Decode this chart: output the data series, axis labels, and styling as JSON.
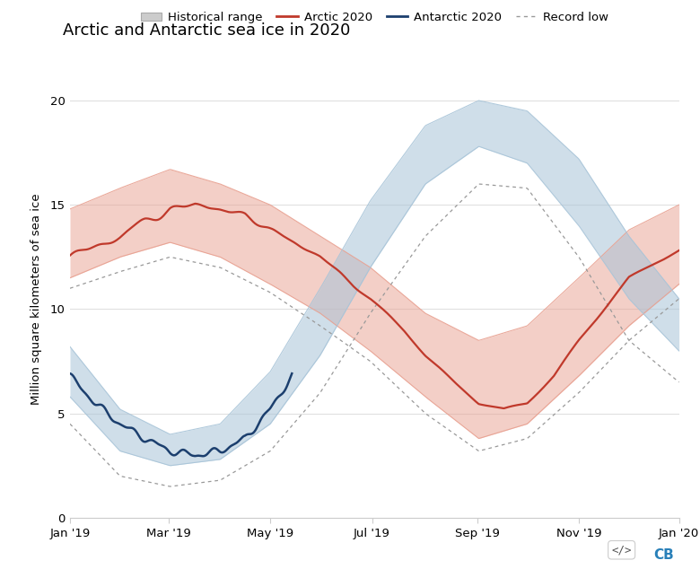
{
  "title": "Arctic and Antarctic sea ice in 2020",
  "ylabel": "Million square kilometers of sea ice",
  "ylim": [
    0,
    21
  ],
  "yticks": [
    0,
    5,
    10,
    15,
    20
  ],
  "background_color": "#ffffff",
  "arctic_color": "#c0392b",
  "antarctic_color": "#1c3f6e",
  "arctic_fill_color": "#e8a090",
  "antarctic_fill_color": "#a8c4d8",
  "record_low_color": "#999999",
  "tick_positions": [
    0,
    59,
    120,
    181,
    244,
    305,
    365
  ],
  "tick_labels": [
    "Jan '19",
    "Mar '19",
    "May '19",
    "Jul '19",
    "Sep '19",
    "Nov '19",
    "Jan '20"
  ],
  "arctic_2020_x": [
    0,
    15,
    30,
    45,
    60,
    75,
    90,
    105,
    120,
    135,
    150,
    165,
    180,
    200,
    213,
    230,
    245,
    260,
    274,
    290,
    305,
    320,
    335,
    350,
    365
  ],
  "arctic_2020_y": [
    12.5,
    13.0,
    13.5,
    14.2,
    14.8,
    15.0,
    14.8,
    14.5,
    13.8,
    13.2,
    12.5,
    11.5,
    10.5,
    9.0,
    7.8,
    6.5,
    5.5,
    5.2,
    5.5,
    6.8,
    8.5,
    10.0,
    11.5,
    12.2,
    12.8
  ],
  "arctic_upper_x": [
    0,
    30,
    60,
    90,
    120,
    150,
    180,
    213,
    245,
    274,
    305,
    335,
    365
  ],
  "arctic_upper_y": [
    14.8,
    15.8,
    16.7,
    16.0,
    15.0,
    13.5,
    12.0,
    9.8,
    8.5,
    9.2,
    11.5,
    13.8,
    15.0
  ],
  "arctic_lower_x": [
    0,
    30,
    60,
    90,
    120,
    150,
    180,
    213,
    245,
    274,
    305,
    335,
    365
  ],
  "arctic_lower_y": [
    11.5,
    12.5,
    13.2,
    12.5,
    11.2,
    9.8,
    8.0,
    5.8,
    3.8,
    4.5,
    6.8,
    9.2,
    11.2
  ],
  "arctic_rec_x": [
    0,
    30,
    60,
    90,
    120,
    150,
    180,
    213,
    245,
    274,
    305,
    335,
    365
  ],
  "arctic_rec_y": [
    11.0,
    11.8,
    12.5,
    12.0,
    10.8,
    9.2,
    7.5,
    5.0,
    3.2,
    3.8,
    6.0,
    8.5,
    10.5
  ],
  "antarctic_2020_x": [
    0,
    15,
    30,
    45,
    60,
    75,
    90,
    105,
    120,
    133
  ],
  "antarctic_2020_y": [
    6.8,
    5.5,
    4.5,
    3.8,
    3.2,
    3.0,
    3.2,
    3.8,
    5.2,
    6.8
  ],
  "antarctic_upper_x": [
    0,
    30,
    60,
    90,
    120,
    150,
    180,
    213,
    245,
    274,
    305,
    335,
    365
  ],
  "antarctic_upper_y": [
    8.2,
    5.2,
    4.0,
    4.5,
    7.0,
    11.0,
    15.2,
    18.8,
    20.0,
    19.5,
    17.2,
    13.5,
    10.5
  ],
  "antarctic_lower_x": [
    0,
    30,
    60,
    90,
    120,
    150,
    180,
    213,
    245,
    274,
    305,
    335,
    365
  ],
  "antarctic_lower_y": [
    5.8,
    3.2,
    2.5,
    2.8,
    4.5,
    7.8,
    12.0,
    16.0,
    17.8,
    17.0,
    14.0,
    10.5,
    8.0
  ],
  "antarctic_rec_x": [
    0,
    30,
    60,
    90,
    120,
    150,
    180,
    213,
    245,
    274,
    305,
    335,
    365
  ],
  "antarctic_rec_y": [
    4.5,
    2.0,
    1.5,
    1.8,
    3.2,
    6.0,
    9.8,
    13.5,
    16.0,
    15.8,
    12.5,
    8.5,
    6.5
  ],
  "logo_cb_color": "#2980b9"
}
